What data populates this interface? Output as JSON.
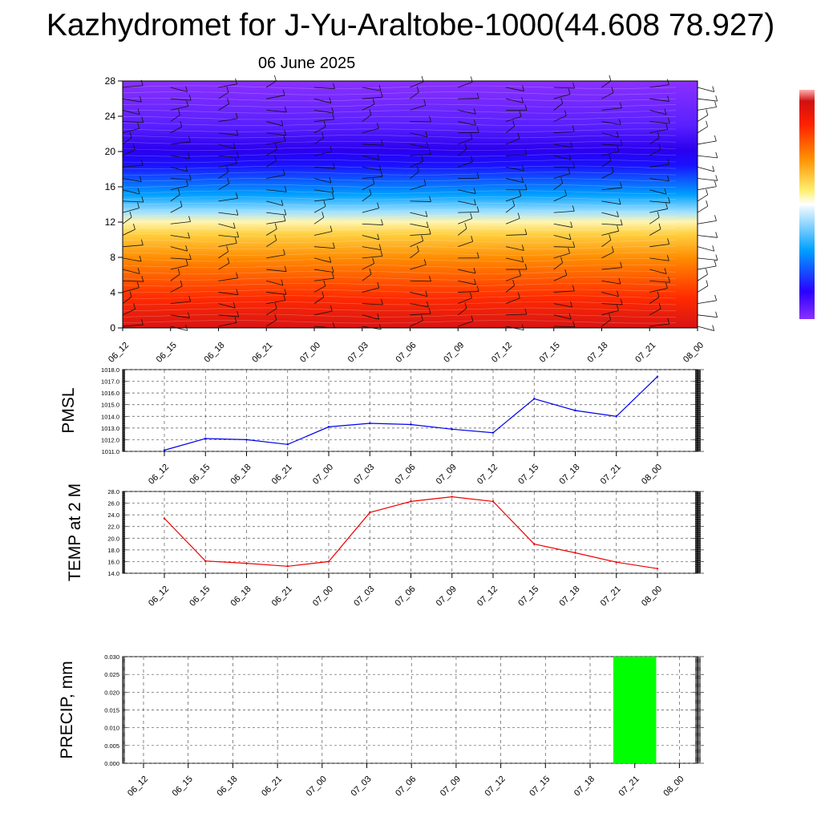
{
  "title": "Kazhydromet for J-Yu-Araltobe-1000(44.608 78.927)",
  "subtitle": "06 June 2025",
  "colors": {
    "pmsl_line": "#0000ee",
    "temp_line": "#ee0000",
    "precip_bar": "#00ff00"
  },
  "time_labels": [
    "06_12",
    "06_15",
    "06_18",
    "06_21",
    "07_00",
    "07_03",
    "07_06",
    "07_09",
    "07_12",
    "07_15",
    "07_18",
    "07_21",
    "08_00"
  ],
  "chart_data": [
    {
      "id": "profile",
      "type": "heatmap",
      "categories": [
        "06_12",
        "06_15",
        "06_18",
        "06_21",
        "07_00",
        "07_03",
        "07_06",
        "07_09",
        "07_12",
        "07_15",
        "07_18",
        "07_21",
        "08_00"
      ],
      "ylim": [
        0,
        28
      ],
      "yticks": [
        0,
        4,
        8,
        12,
        16,
        20,
        24,
        28
      ],
      "colormap": [
        "#7b2cff",
        "#2a00ff",
        "#00b4ff",
        "#fff08a",
        "#ffa000",
        "#ff3000",
        "#e61010"
      ],
      "has_wind_barbs": true
    },
    {
      "id": "pmsl",
      "type": "line",
      "ylabel": "PMSL",
      "categories": [
        "06_12",
        "06_15",
        "06_18",
        "06_21",
        "07_00",
        "07_03",
        "07_06",
        "07_09",
        "07_12",
        "07_15",
        "07_18",
        "07_21",
        "08_00"
      ],
      "values": [
        1011.1,
        1012.1,
        1012.0,
        1011.6,
        1013.1,
        1013.4,
        1013.3,
        1012.9,
        1012.6,
        1015.5,
        1014.5,
        1014.0,
        1017.4
      ],
      "ylim": [
        1011.0,
        1018.0
      ],
      "yticks": [
        "1011.0",
        "1012.0",
        "1013.0",
        "1014.0",
        "1015.0",
        "1016.0",
        "1017.0",
        "1018.0"
      ],
      "grid": true
    },
    {
      "id": "temp",
      "type": "line",
      "ylabel": "TEMP at 2 M",
      "categories": [
        "06_12",
        "06_15",
        "06_18",
        "06_21",
        "07_00",
        "07_03",
        "07_06",
        "07_09",
        "07_12",
        "07_15",
        "07_18",
        "07_21",
        "08_00"
      ],
      "values": [
        23.4,
        16.1,
        15.7,
        15.2,
        16.0,
        24.4,
        26.3,
        27.1,
        26.3,
        19.0,
        17.5,
        15.9,
        14.8
      ],
      "ylim": [
        14.0,
        28.0
      ],
      "yticks": [
        "14.0",
        "16.0",
        "18.0",
        "20.0",
        "22.0",
        "24.0",
        "26.0",
        "28.0"
      ],
      "grid": true
    },
    {
      "id": "precip",
      "type": "bar",
      "ylabel": "PRECIP, mm",
      "categories": [
        "06_12",
        "06_15",
        "06_18",
        "06_21",
        "07_00",
        "07_03",
        "07_06",
        "07_09",
        "07_12",
        "07_15",
        "07_18",
        "07_21",
        "08_00"
      ],
      "values": [
        0,
        0,
        0,
        0,
        0,
        0,
        0,
        0,
        0,
        0,
        0,
        0.03,
        0
      ],
      "ylim": [
        0.0,
        0.03
      ],
      "yticks": [
        "0.000",
        "0.005",
        "0.010",
        "0.015",
        "0.020",
        "0.025",
        "0.030"
      ],
      "grid": true
    }
  ]
}
